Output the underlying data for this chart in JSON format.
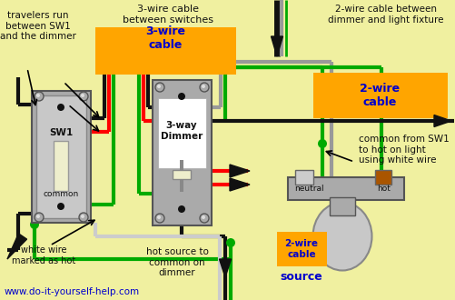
{
  "bg_color": "#f0f0a0",
  "orange_cable_color": "#FFA500",
  "blue_label_color": "#0000CC",
  "black_text_color": "#111111",
  "red_wire": "#FF0000",
  "green_wire": "#00AA00",
  "black_wire": "#111111",
  "gray_wire": "#999999",
  "white_wire": "#CCCCCC",
  "switch_gray": "#AAAAAA",
  "switch_face": "#BBBBBB",
  "switch_inner": "#C8C8C8",
  "toggle_color": "#EEEECC",
  "screw_color": "#AAAAAA",
  "label_url": "www.do-it-yourself-help.com",
  "label_url_color": "#0000CC",
  "texts": {
    "top_left": "travelers run\nbetween SW1\nand the dimmer",
    "top_mid": "3-wire cable\nbetween switches",
    "top_right": "2-wire cable between\ndimmer and light fixture",
    "cable3": "3-wire\ncable",
    "cable2_right": "2-wire\ncable",
    "common_right": "common from SW1\nto hot on light\nusing white wire",
    "sw1": "SW1",
    "sw1_common": "common",
    "dimmer": "3-way\nDimmer",
    "bottom_left": "white wire\nmarked as hot",
    "bottom_mid": "hot source to\ncommon on\ndimmer",
    "cable2_source": "2-wire\ncable",
    "source": "source",
    "neutral": "neutral",
    "hot": "hot"
  }
}
